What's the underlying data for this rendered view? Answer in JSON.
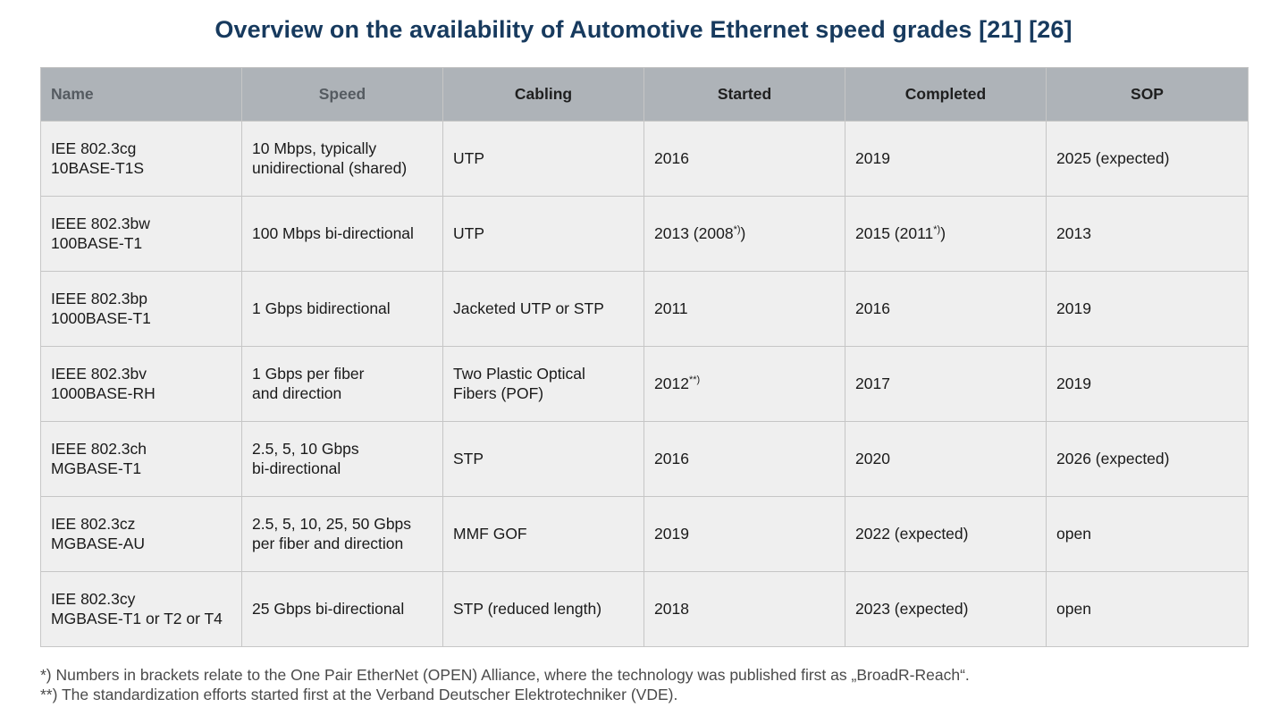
{
  "title": "Overview on the availability of Automotive Ethernet speed grades [21] [26]",
  "table": {
    "headers": {
      "name": "Name",
      "speed": "Speed",
      "cabling": "Cabling",
      "started": "Started",
      "completed": "Completed",
      "sop": "SOP"
    },
    "rows": [
      {
        "name_1": "IEE 802.3cg",
        "name_2": "10BASE-T1S",
        "speed_1": "10 Mbps, typically",
        "speed_2": "unidirectional (shared)",
        "cabling_1": "UTP",
        "cabling_2": "",
        "started": "2016",
        "started_note": "",
        "started_suffix": "",
        "completed": "2019",
        "completed_note": "",
        "completed_suffix": "",
        "sop": "2025 (expected)"
      },
      {
        "name_1": "IEEE 802.3bw",
        "name_2": "100BASE-T1",
        "speed_1": "100 Mbps bi-directional",
        "speed_2": "",
        "cabling_1": "UTP",
        "cabling_2": "",
        "started": "2013 (2008",
        "started_note": "*)",
        "started_suffix": ")",
        "completed": "2015 (2011",
        "completed_note": "*)",
        "completed_suffix": ")",
        "sop": "2013"
      },
      {
        "name_1": "IEEE  802.3bp",
        "name_2": "1000BASE-T1",
        "speed_1": "1 Gbps bidirectional",
        "speed_2": "",
        "cabling_1": "Jacketed UTP or STP",
        "cabling_2": "",
        "started": "2011",
        "started_note": "",
        "started_suffix": "",
        "completed": "2016",
        "completed_note": "",
        "completed_suffix": "",
        "sop": "2019"
      },
      {
        "name_1": "IEEE 802.3bv",
        "name_2": "1000BASE-RH",
        "speed_1": "1 Gbps per fiber",
        "speed_2": "and direction",
        "cabling_1": "Two Plastic Optical",
        "cabling_2": "Fibers (POF)",
        "started": "2012",
        "started_note": "**)",
        "started_suffix": "",
        "completed": "2017",
        "completed_note": "",
        "completed_suffix": "",
        "sop": "2019"
      },
      {
        "name_1": "IEEE 802.3ch",
        "name_2": "MGBASE-T1",
        "speed_1": "2.5, 5, 10 Gbps",
        "speed_2": "bi-directional",
        "cabling_1": "STP",
        "cabling_2": "",
        "started": "2016",
        "started_note": "",
        "started_suffix": "",
        "completed": "2020",
        "completed_note": "",
        "completed_suffix": "",
        "sop": "2026 (expected)"
      },
      {
        "name_1": "IEE 802.3cz",
        "name_2": "MGBASE-AU",
        "speed_1": "2.5, 5, 10, 25, 50 Gbps",
        "speed_2": "per fiber and direction",
        "cabling_1": "MMF GOF",
        "cabling_2": "",
        "started": "2019",
        "started_note": "",
        "started_suffix": "",
        "completed": "2022 (expected)",
        "completed_note": "",
        "completed_suffix": "",
        "sop": "open"
      },
      {
        "name_1": "IEE 802.3cy",
        "name_2": "MGBASE-T1 or T2 or T4",
        "speed_1": "25 Gbps bi-directional",
        "speed_2": "",
        "cabling_1": "STP (reduced length)",
        "cabling_2": "",
        "started": "2018",
        "started_note": "",
        "started_suffix": "",
        "completed": "2023 (expected)",
        "completed_note": "",
        "completed_suffix": "",
        "sop": "open"
      }
    ]
  },
  "footnotes": {
    "note_1": "*) Numbers in brackets relate to the One Pair EtherNet (OPEN) Alliance, where the technology was published first as „BroadR-Reach“.",
    "note_2": "**) The standardization efforts started first at the Verband Deutscher Elektrotechniker (VDE)."
  }
}
